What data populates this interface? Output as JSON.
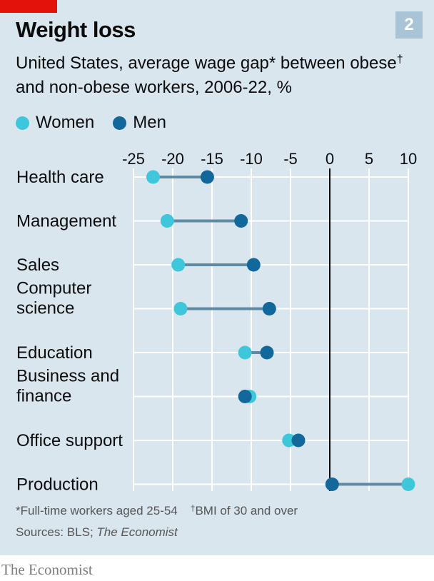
{
  "header": {
    "title": "Weight loss",
    "badge": "2",
    "subtitle_pre": "United States, average wage gap* between obese",
    "subtitle_dagger": "†",
    "subtitle_post": " and non-obese workers, 2006-22, %"
  },
  "legend": [
    {
      "label": "Women",
      "color": "#3ec6da"
    },
    {
      "label": "Men",
      "color": "#12689a"
    }
  ],
  "footer": {
    "note1": "*Full-time workers aged 25-54",
    "note2_dagger": "†",
    "note2": "BMI of 30 and over",
    "sources_prefix": "Sources: BLS; ",
    "sources_italic": "The Economist",
    "brand": "The Economist"
  },
  "colors": {
    "women": "#3ec6da",
    "men": "#12689a",
    "connector": "#5e8aa4",
    "grid": "#ffffff",
    "zero_line": "#0c0c0c"
  },
  "chart_data": {
    "type": "dumbbell",
    "title": "Weight loss",
    "subtitle": "United States, average wage gap* between obese† and non-obese workers, 2006-22, %",
    "x_ticks": [
      -25,
      -20,
      -15,
      -10,
      -5,
      0,
      5,
      10
    ],
    "xlim": [
      -25,
      10
    ],
    "categories": [
      [
        "Health care"
      ],
      [
        "Management"
      ],
      [
        "Sales"
      ],
      [
        "Computer",
        "science"
      ],
      [
        "Education"
      ],
      [
        "Business and",
        "finance"
      ],
      [
        "Office support"
      ],
      [
        "Production"
      ]
    ],
    "series": [
      {
        "name": "Women",
        "values": [
          -22.5,
          -20.7,
          -19.3,
          -19.0,
          -10.8,
          -10.2,
          -5.2,
          10.0
        ]
      },
      {
        "name": "Men",
        "values": [
          -15.6,
          -11.3,
          -9.7,
          -7.7,
          -8.0,
          -10.8,
          -4.0,
          0.3
        ]
      }
    ],
    "legend_position": "top-left"
  }
}
